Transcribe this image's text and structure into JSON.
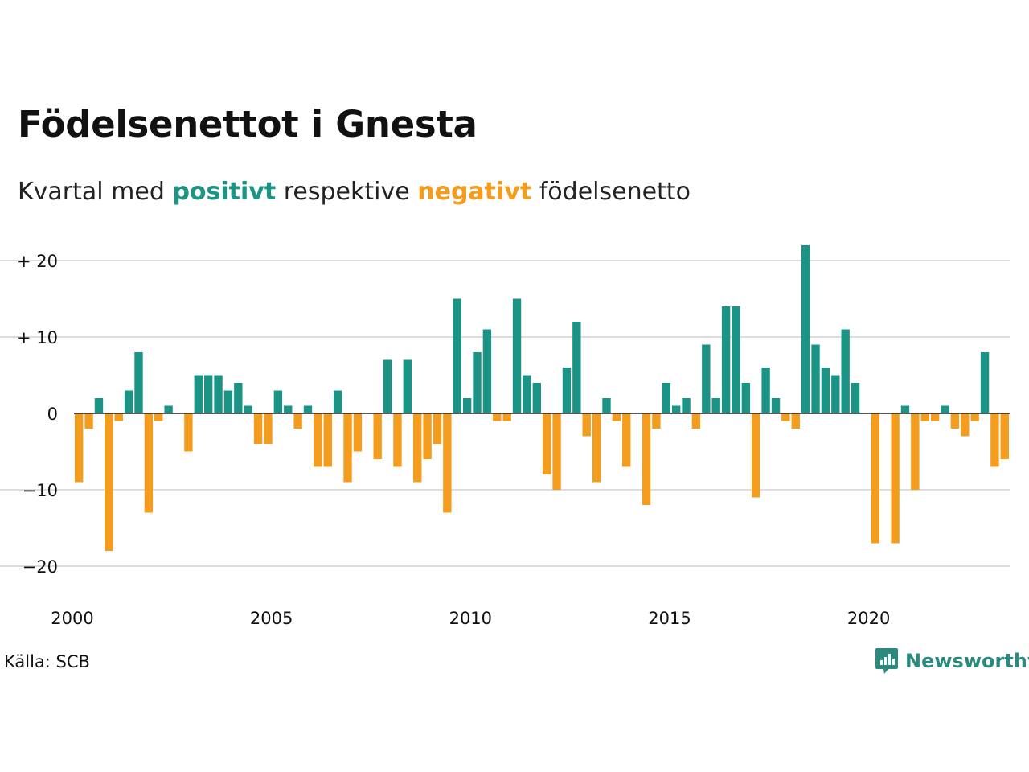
{
  "header": {
    "title": "Födelsenettot i Gnesta",
    "subtitle_part1": "Kvartal med",
    "subtitle_positive": "positivt",
    "subtitle_part2": "respektive",
    "subtitle_negative": "negativt",
    "subtitle_part3": "födelsenetto"
  },
  "footer": {
    "source": "Källa: SCB",
    "brand": "Newsworthy",
    "brand_icon": "newsworthy-logo-icon"
  },
  "colors": {
    "positive": "#1b9385",
    "negative": "#f39c1d",
    "grid": "#dddddd",
    "zero_line": "#222222",
    "brand": "#2a8a7e"
  },
  "chart_data": {
    "type": "bar",
    "title": "Födelsenettot i Gnesta",
    "xlabel": "",
    "ylabel": "",
    "x_start": "2000 Q1",
    "frequency": "quarterly",
    "x_ticks": [
      "2000",
      "2005",
      "2010",
      "2015",
      "2020"
    ],
    "y_ticks": [
      20,
      10,
      0,
      -10,
      -20
    ],
    "y_tick_labels": [
      "+ 20",
      "+ 10",
      "0",
      "−10",
      "−20"
    ],
    "ylim": [
      -24,
      23
    ],
    "grid": true,
    "values": [
      -9,
      -2,
      2,
      -18,
      -1,
      3,
      8,
      -13,
      -1,
      1,
      0,
      -5,
      5,
      5,
      5,
      3,
      4,
      1,
      -4,
      -4,
      3,
      1,
      -2,
      1,
      -7,
      -7,
      3,
      -9,
      -5,
      0,
      -6,
      7,
      -7,
      7,
      -9,
      -6,
      -4,
      -13,
      15,
      2,
      8,
      11,
      -1,
      -1,
      15,
      5,
      4,
      -8,
      -10,
      6,
      12,
      -3,
      -9,
      2,
      -1,
      -7,
      0,
      -12,
      -2,
      4,
      1,
      2,
      -2,
      9,
      2,
      14,
      14,
      4,
      -11,
      6,
      2,
      -1,
      -2,
      22,
      9,
      6,
      5,
      11,
      4,
      0,
      -17,
      0,
      -17,
      1,
      -10,
      -1,
      -1,
      1,
      -2,
      -3,
      -1,
      8,
      -7,
      -6
    ]
  }
}
